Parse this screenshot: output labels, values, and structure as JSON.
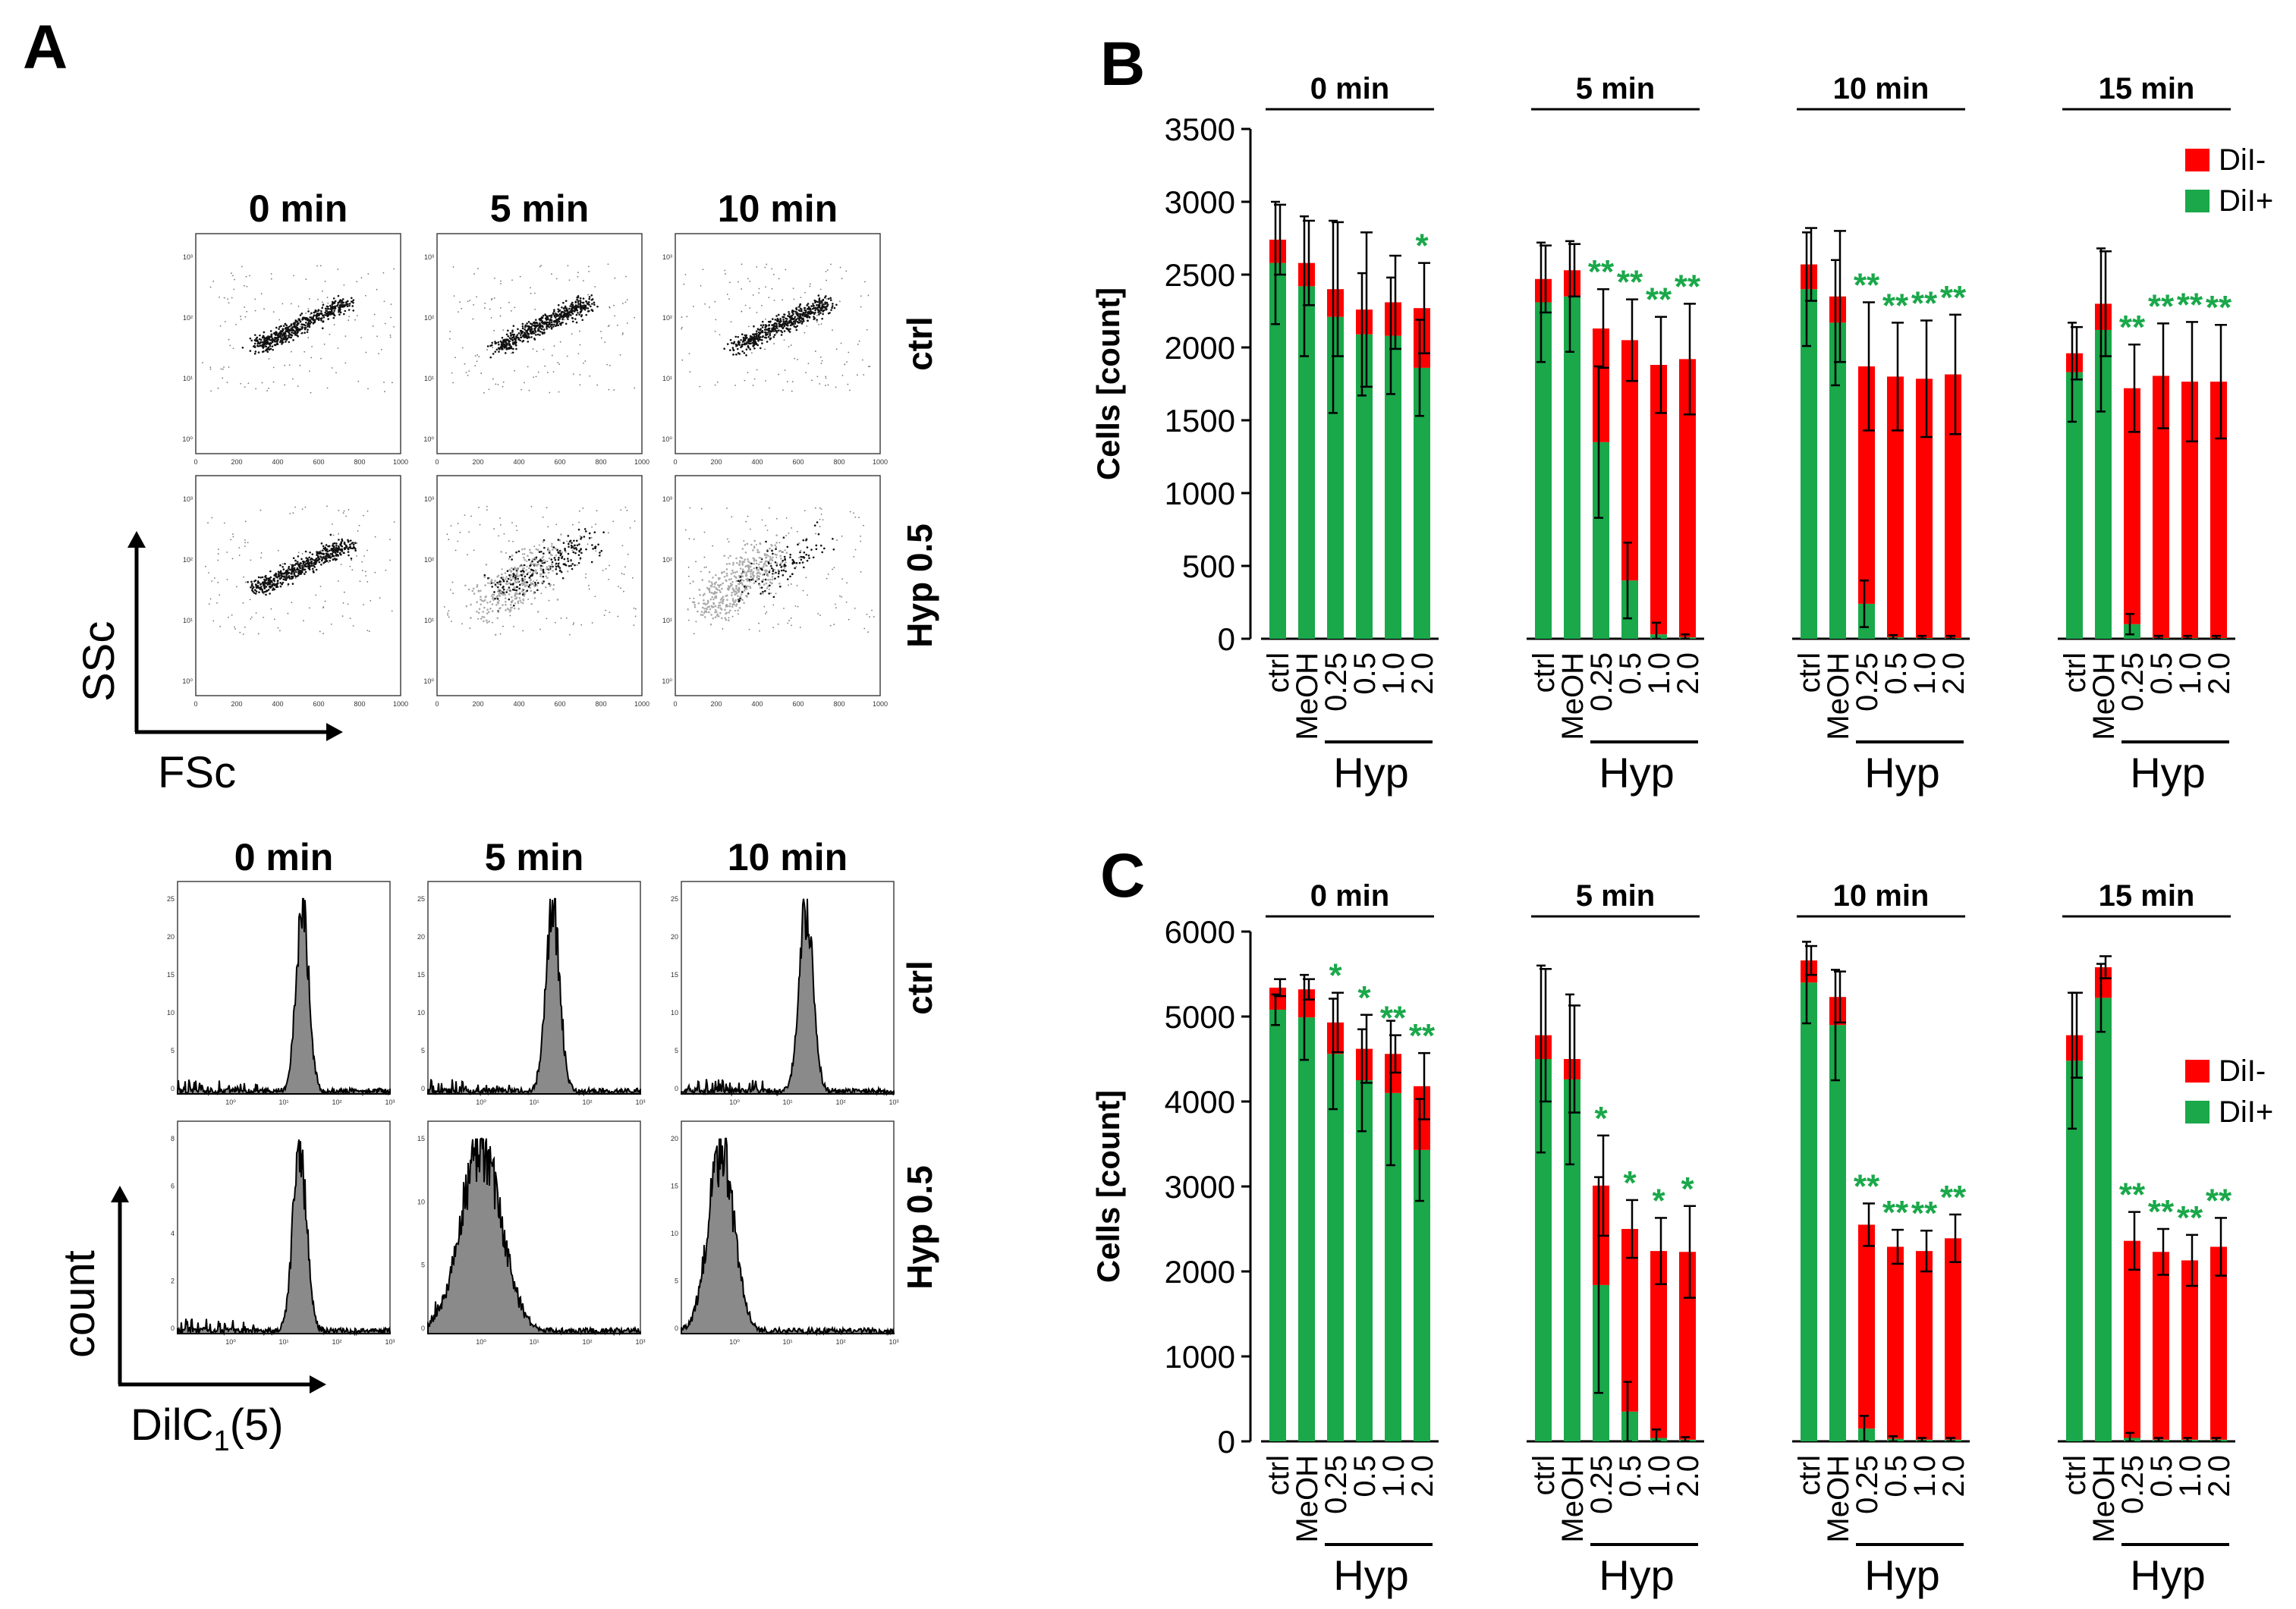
{
  "figure": {
    "panel_labels": [
      "A",
      "B",
      "C"
    ]
  },
  "panel_a": {
    "scatter_times": [
      "0 min",
      "5 min",
      "10 min"
    ],
    "hist_times": [
      "0 min",
      "5 min",
      "10 min"
    ],
    "row_labels": [
      "ctrl",
      "Hyp 0.5"
    ],
    "scatter_x_axis_label": "FSc",
    "scatter_y_axis_label": "SSc",
    "hist_x_axis_label": "DilC",
    "hist_x_axis_sub": "1",
    "hist_x_axis_suffix": "(5)",
    "hist_y_axis_label": "count",
    "scatter_x_ticks": [
      "0",
      "200",
      "400",
      "600",
      "800",
      "1000"
    ],
    "scatter_y_ticks": [
      "10⁰",
      "10¹",
      "10²",
      "10³"
    ],
    "hist_x_ticks": [
      "10⁰",
      "10¹",
      "10²",
      "10³"
    ],
    "hist_y_ticks_ctrl": [
      [
        "0",
        "5",
        "10",
        "15",
        "20",
        "25"
      ],
      [
        "0",
        "5",
        "10",
        "15",
        "20",
        "25"
      ],
      [
        "0",
        "5",
        "10",
        "15",
        "20",
        "25"
      ]
    ],
    "hist_y_ticks_hyp": [
      [
        "0",
        "2",
        "4",
        "6",
        "8"
      ],
      [
        "0",
        "5",
        "10",
        "15"
      ],
      [
        "0",
        "5",
        "10",
        "15",
        "20"
      ]
    ],
    "hist_peaks": {
      "ctrl": [
        2.35,
        2.35,
        2.35
      ],
      "hyp": [
        2.3,
        1.0,
        0.75
      ]
    },
    "hist_widths": {
      "ctrl": [
        0.12,
        0.13,
        0.13
      ],
      "hyp": [
        0.13,
        0.38,
        0.24
      ]
    }
  },
  "chart_data": [
    {
      "type": "bar",
      "panel": "B",
      "stacked": true,
      "ylabel": "Cells [count]",
      "ylim": [
        0,
        3500
      ],
      "yticks": [
        "0",
        "500",
        "1000",
        "1500",
        "2000",
        "2500",
        "3000",
        "3500"
      ],
      "group_labels": [
        "0 min",
        "5 min",
        "10 min",
        "15 min"
      ],
      "categories": [
        "ctrl",
        "MeOH",
        "0.25",
        "0.5",
        "1.0",
        "2.0"
      ],
      "bracket_label": "Hyp",
      "legend": [
        "DiI-",
        "DiI+"
      ],
      "series": [
        {
          "name": "DiI+",
          "color": "#1aa84a",
          "values": [
            [
              2580,
              2420,
              2210,
              2090,
              2080,
              1860
            ],
            [
              2310,
              2350,
              1350,
              400,
              30,
              10
            ],
            [
              2400,
              2170,
              240,
              10,
              5,
              5
            ],
            [
              1830,
              2120,
              100,
              5,
              5,
              5
            ]
          ]
        },
        {
          "name": "DiI-",
          "color": "#ff0000",
          "values": [
            [
              160,
              160,
              190,
              170,
              230,
              410
            ],
            [
              160,
              180,
              780,
              1650,
              1850,
              1910
            ],
            [
              170,
              180,
              1630,
              1790,
              1780,
              1810
            ],
            [
              130,
              180,
              1620,
              1800,
              1760,
              1760
            ]
          ]
        }
      ],
      "totals": [
        [
          2740,
          2580,
          2400,
          2260,
          2310,
          2270
        ],
        [
          2470,
          2530,
          2130,
          2050,
          1880,
          1920
        ],
        [
          2570,
          2350,
          1870,
          1800,
          1785,
          1815
        ],
        [
          1960,
          2300,
          1720,
          1805,
          1765,
          1765
        ]
      ],
      "errors": [
        [
          240,
          290,
          460,
          530,
          320,
          310
        ],
        [
          230,
          180,
          270,
          280,
          330,
          380
        ],
        [
          250,
          450,
          440,
          370,
          400,
          410
        ],
        [
          180,
          360,
          300,
          360,
          410,
          390
        ]
      ],
      "inner_errors": [
        [
          420,
          480,
          660,
          420,
          400,
          330
        ],
        [
          410,
          380,
          520,
          260,
          80,
          20
        ],
        [
          390,
          430,
          160,
          15,
          15,
          15
        ],
        [
          340,
          560,
          70,
          15,
          15,
          15
        ]
      ],
      "significance": [
        [
          "",
          "",
          "",
          "",
          "",
          "*"
        ],
        [
          "",
          "",
          "**",
          "**",
          "**",
          "**"
        ],
        [
          "",
          "",
          "**",
          "**",
          "**",
          "**"
        ],
        [
          "",
          "",
          "**",
          "**",
          "**",
          "**"
        ]
      ],
      "significance_color": "#1aa84a"
    },
    {
      "type": "bar",
      "panel": "C",
      "stacked": true,
      "ylabel": "Cells [count]",
      "ylim": [
        0,
        6000
      ],
      "yticks": [
        "0",
        "1000",
        "2000",
        "3000",
        "4000",
        "5000",
        "6000"
      ],
      "group_labels": [
        "0 min",
        "5 min",
        "10 min",
        "15 min"
      ],
      "categories": [
        "ctrl",
        "MeOH",
        "0.25",
        "0.5",
        "1.0",
        "2.0"
      ],
      "bracket_label": "Hyp",
      "legend": [
        "DiI-",
        "DiI+"
      ],
      "series": [
        {
          "name": "DiI+",
          "color": "#1aa84a",
          "values": [
            [
              5080,
              4990,
              4560,
              4250,
              4100,
              3430
            ],
            [
              4500,
              4260,
              1840,
              350,
              40,
              20
            ],
            [
              5400,
              4900,
              150,
              30,
              20,
              20
            ],
            [
              4480,
              5220,
              40,
              20,
              20,
              20
            ]
          ]
        },
        {
          "name": "DiI-",
          "color": "#ff0000",
          "values": [
            [
              260,
              330,
              370,
              370,
              460,
              750
            ],
            [
              280,
              240,
              1170,
              2150,
              2200,
              2210
            ],
            [
              260,
              330,
              2400,
              2260,
              2220,
              2370
            ],
            [
              300,
              360,
              2320,
              2210,
              2110,
              2270
            ]
          ]
        }
      ],
      "totals": [
        [
          5340,
          5320,
          4930,
          4620,
          4560,
          4180
        ],
        [
          4780,
          4500,
          3010,
          2500,
          2240,
          2230
        ],
        [
          5660,
          5230,
          2550,
          2290,
          2240,
          2390
        ],
        [
          4780,
          5580,
          2360,
          2230,
          2130,
          2290
        ]
      ],
      "errors": [
        [
          100,
          120,
          350,
          400,
          220,
          390
        ],
        [
          780,
          630,
          590,
          340,
          390,
          540
        ],
        [
          170,
          300,
          250,
          200,
          240,
          280
        ],
        [
          500,
          130,
          340,
          270,
          300,
          340
        ]
      ],
      "inner_errors": [
        [
          180,
          500,
          650,
          600,
          850,
          600
        ],
        [
          1100,
          1000,
          1270,
          350,
          100,
          30
        ],
        [
          480,
          650,
          150,
          30,
          20,
          20
        ],
        [
          800,
          400,
          60,
          20,
          20,
          20
        ]
      ],
      "significance": [
        [
          "",
          "",
          "*",
          "*",
          "**",
          "**"
        ],
        [
          "",
          "",
          "*",
          "*",
          "*",
          "*"
        ],
        [
          "",
          "",
          "**",
          "**",
          "**",
          "**"
        ],
        [
          "",
          "",
          "**",
          "**",
          "**",
          "**"
        ]
      ],
      "significance_color": "#1aa84a"
    }
  ]
}
